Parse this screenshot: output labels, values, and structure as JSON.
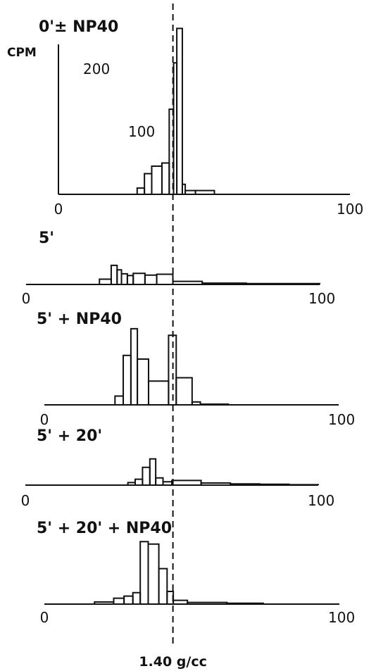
{
  "figure": {
    "reference_line": {
      "x": 40,
      "label": "1.40 g/cc"
    }
  },
  "chart_data": [
    {
      "type": "bar",
      "title": "0'± NP40",
      "ylabel": "CPM",
      "xlim": [
        0,
        100
      ],
      "ylim": [
        0,
        270
      ],
      "x_ticks": [
        "0",
        "100"
      ],
      "y_ticks": [
        {
          "value": 100,
          "label": "100"
        },
        {
          "value": 200,
          "label": "200"
        }
      ],
      "bin_edges": [
        27,
        29.5,
        32,
        35.5,
        38,
        39.5,
        40.6,
        42.5,
        43.5,
        47,
        53.5
      ],
      "values": [
        10,
        33,
        45,
        50,
        136,
        210,
        265,
        16,
        6,
        6
      ]
    },
    {
      "type": "bar",
      "title": "5'",
      "xlim": [
        0,
        100
      ],
      "x_ticks": [
        "0",
        "100"
      ],
      "bin_edges": [
        25,
        29,
        31,
        32.5,
        34.5,
        36.5,
        40.5,
        44.5,
        50,
        60,
        75,
        100
      ],
      "values": [
        12,
        43,
        33,
        24,
        20,
        25,
        21,
        23,
        7,
        3,
        2
      ]
    },
    {
      "type": "bar",
      "title": "5' + NP40",
      "xlim": [
        0,
        100
      ],
      "x_ticks": [
        "0",
        "100"
      ],
      "bin_edges": [
        24,
        26.8,
        29.4,
        31.6,
        35.4,
        42.2,
        44.8,
        50.2,
        53,
        62.5
      ],
      "values": [
        24,
        135,
        208,
        125,
        65,
        190,
        74,
        8,
        2
      ]
    },
    {
      "type": "bar",
      "title": "5' + 20'",
      "xlim": [
        0,
        100
      ],
      "x_ticks": [
        "0",
        "100"
      ],
      "bin_edges": [
        35,
        37.5,
        40,
        42.5,
        44.5,
        47,
        50,
        60,
        70,
        80,
        90,
        100
      ],
      "values": [
        6,
        14,
        42,
        62,
        17,
        8,
        11,
        5,
        3,
        2,
        1
      ]
    },
    {
      "type": "bar",
      "title": "5' + 20' + NP40",
      "xlim": [
        0,
        100
      ],
      "x_ticks": [
        "0",
        "100"
      ],
      "bin_edges": [
        17,
        23.5,
        27,
        30,
        32.5,
        35.2,
        38.8,
        41.6,
        43.7,
        48.5,
        61.9,
        74.2
      ],
      "values": [
        5,
        14,
        19,
        27,
        148,
        142,
        84,
        30,
        9,
        4,
        2
      ]
    }
  ]
}
